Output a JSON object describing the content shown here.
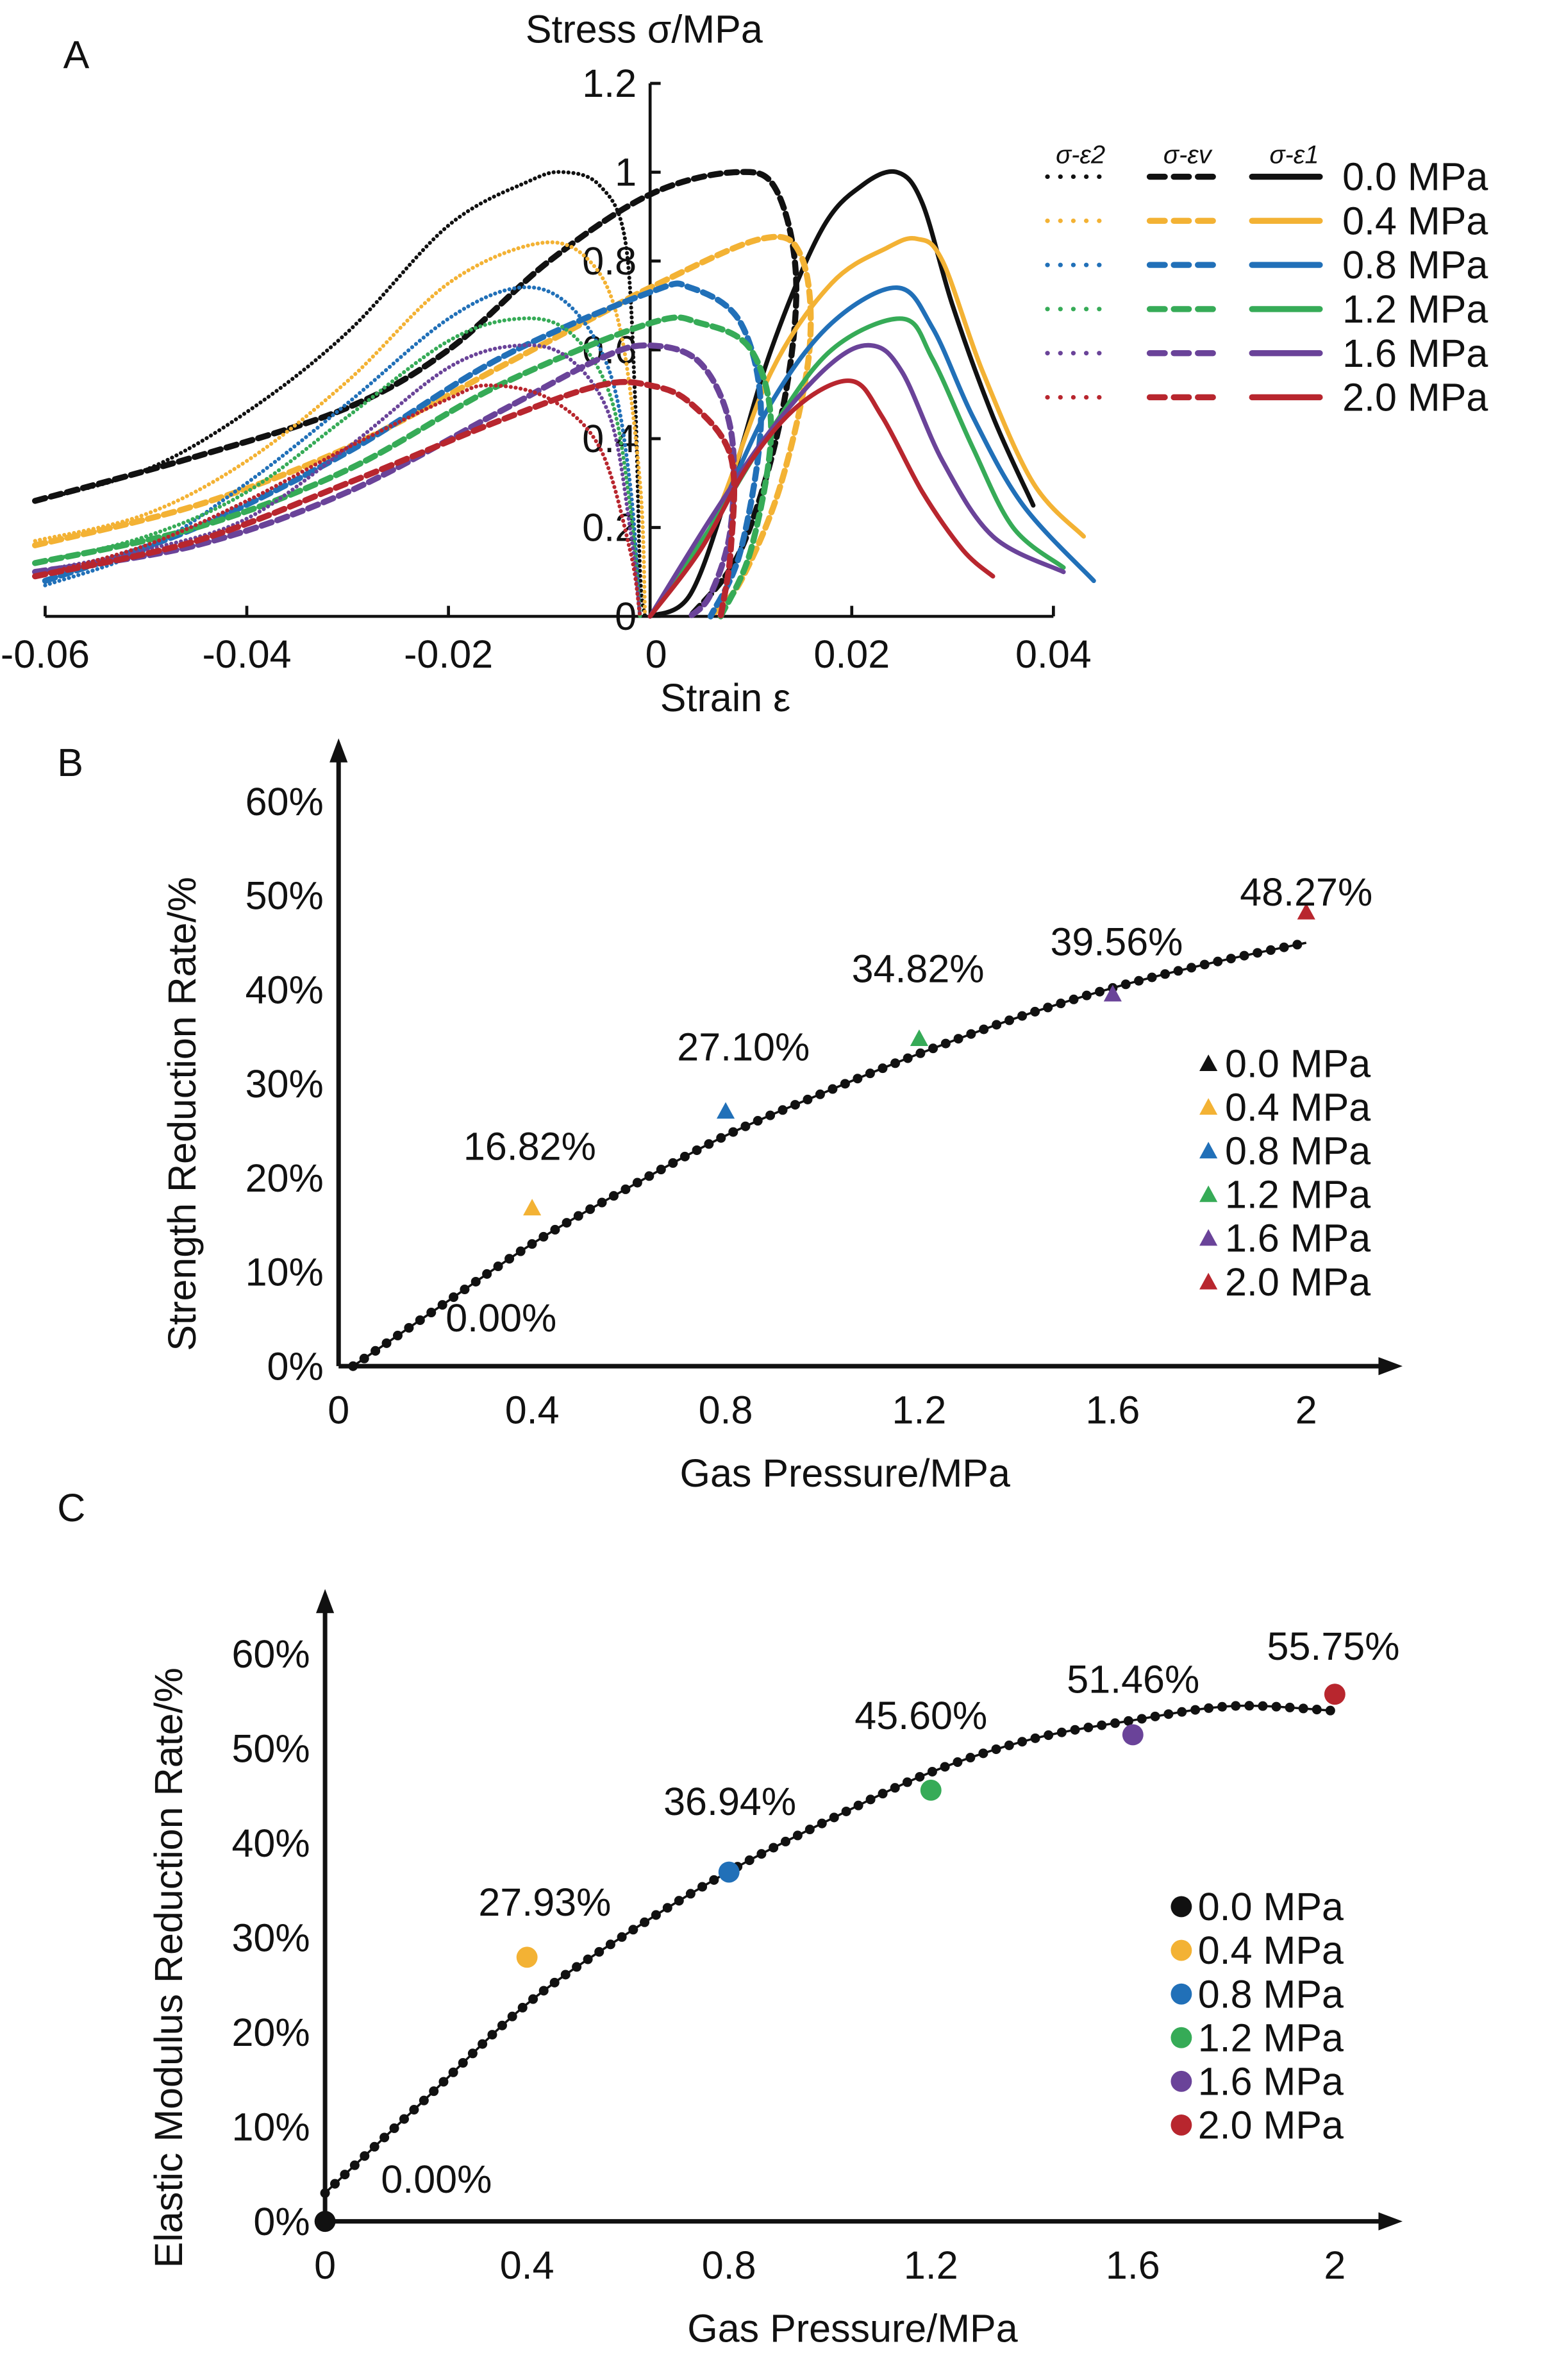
{
  "colors": {
    "0.0": "#111111",
    "0.4": "#f3b234",
    "0.8": "#2170b8",
    "1.2": "#36ab57",
    "1.6": "#6a4399",
    "2.0": "#b8262e"
  },
  "chart_data": [
    {
      "panel_label": "A",
      "type": "line",
      "title": "",
      "ylabel": "Stress σ/MPa",
      "xlabel": "Strain ε",
      "xlim": [
        -0.06,
        0.04
      ],
      "ylim": [
        0,
        1.2
      ],
      "xticks": [
        "-0.06",
        "-0.04",
        "-0.02",
        "0",
        "0.02",
        "0.04"
      ],
      "xtick_values": [
        -0.06,
        -0.04,
        -0.02,
        0,
        0.02,
        0.04
      ],
      "yticks": [
        "0",
        "0.2",
        "0.4",
        "0.6",
        "0.8",
        "1",
        "1.2"
      ],
      "ytick_values": [
        0,
        0.2,
        0.4,
        0.6,
        0.8,
        1.0,
        1.2
      ],
      "legend": {
        "placement": "right",
        "curve_types": [
          "σ-ε2",
          "σ-εv",
          "σ-ε1"
        ],
        "entries": [
          "0.0 MPa",
          "0.4 MPa",
          "0.8 MPa",
          "1.2 MPa",
          "1.6 MPa",
          "2.0 MPa"
        ]
      },
      "series": [
        {
          "name": "0.0 MPa",
          "key": "0.0",
          "e1": [
            [
              0,
              0
            ],
            [
              0.004,
              0.05
            ],
            [
              0.008,
              0.3
            ],
            [
              0.012,
              0.6
            ],
            [
              0.017,
              0.87
            ],
            [
              0.021,
              0.97
            ],
            [
              0.0245,
              1.0
            ],
            [
              0.027,
              0.93
            ],
            [
              0.03,
              0.7
            ],
            [
              0.034,
              0.45
            ],
            [
              0.038,
              0.25
            ]
          ],
          "e2": [
            [
              -0.061,
              0.26
            ],
            [
              -0.05,
              0.33
            ],
            [
              -0.04,
              0.46
            ],
            [
              -0.03,
              0.64
            ],
            [
              -0.02,
              0.88
            ],
            [
              -0.012,
              0.98
            ],
            [
              -0.0085,
              1.0
            ],
            [
              -0.005,
              0.97
            ],
            [
              -0.0025,
              0.85
            ],
            [
              -0.0015,
              0.5
            ],
            [
              -0.001,
              0.1
            ],
            [
              -0.0005,
              0
            ]
          ],
          "ev": [
            [
              -0.061,
              0.26
            ],
            [
              -0.045,
              0.36
            ],
            [
              -0.03,
              0.47
            ],
            [
              -0.02,
              0.6
            ],
            [
              -0.01,
              0.8
            ],
            [
              0,
              0.95
            ],
            [
              0.0085,
              1.0
            ],
            [
              0.0125,
              0.96
            ],
            [
              0.0145,
              0.75
            ],
            [
              0.013,
              0.45
            ],
            [
              0.009,
              0.15
            ],
            [
              0.004,
              0
            ]
          ]
        },
        {
          "name": "0.4 MPa",
          "key": "0.4",
          "e1": [
            [
              0,
              0
            ],
            [
              0.006,
              0.2
            ],
            [
              0.012,
              0.55
            ],
            [
              0.018,
              0.75
            ],
            [
              0.0235,
              0.83
            ],
            [
              0.0265,
              0.85
            ],
            [
              0.029,
              0.8
            ],
            [
              0.033,
              0.55
            ],
            [
              0.038,
              0.3
            ],
            [
              0.043,
              0.18
            ]
          ],
          "e2": [
            [
              -0.061,
              0.17
            ],
            [
              -0.05,
              0.23
            ],
            [
              -0.04,
              0.35
            ],
            [
              -0.03,
              0.53
            ],
            [
              -0.02,
              0.75
            ],
            [
              -0.011,
              0.84
            ],
            [
              -0.006,
              0.8
            ],
            [
              -0.003,
              0.65
            ],
            [
              -0.001,
              0.3
            ],
            [
              -0.0005,
              0
            ]
          ],
          "ev": [
            [
              -0.061,
              0.16
            ],
            [
              -0.045,
              0.25
            ],
            [
              -0.03,
              0.38
            ],
            [
              -0.015,
              0.56
            ],
            [
              -0.005,
              0.68
            ],
            [
              0,
              0.74
            ],
            [
              0.011,
              0.85
            ],
            [
              0.015,
              0.81
            ],
            [
              0.0158,
              0.6
            ],
            [
              0.013,
              0.3
            ],
            [
              0.009,
              0.08
            ],
            [
              0.006,
              0
            ]
          ]
        },
        {
          "name": "0.8 MPa",
          "key": "0.8",
          "e1": [
            [
              0,
              0
            ],
            [
              0.006,
              0.2
            ],
            [
              0.012,
              0.48
            ],
            [
              0.018,
              0.66
            ],
            [
              0.0245,
              0.74
            ],
            [
              0.028,
              0.65
            ],
            [
              0.032,
              0.45
            ],
            [
              0.037,
              0.25
            ],
            [
              0.044,
              0.08
            ]
          ],
          "e2": [
            [
              -0.06,
              0.07
            ],
            [
              -0.05,
              0.15
            ],
            [
              -0.04,
              0.3
            ],
            [
              -0.03,
              0.48
            ],
            [
              -0.02,
              0.67
            ],
            [
              -0.013,
              0.74
            ],
            [
              -0.008,
              0.7
            ],
            [
              -0.004,
              0.55
            ],
            [
              -0.002,
              0.3
            ],
            [
              -0.001,
              0
            ]
          ],
          "ev": [
            [
              -0.06,
              0.08
            ],
            [
              -0.045,
              0.2
            ],
            [
              -0.03,
              0.37
            ],
            [
              -0.015,
              0.58
            ],
            [
              0,
              0.73
            ],
            [
              0.004,
              0.74
            ],
            [
              0.009,
              0.66
            ],
            [
              0.011,
              0.45
            ],
            [
              0.009,
              0.15
            ],
            [
              0.006,
              0
            ]
          ]
        },
        {
          "name": "1.2 MPa",
          "key": "1.2",
          "e1": [
            [
              0,
              0
            ],
            [
              0.006,
              0.2
            ],
            [
              0.012,
              0.42
            ],
            [
              0.018,
              0.6
            ],
            [
              0.025,
              0.67
            ],
            [
              0.028,
              0.58
            ],
            [
              0.032,
              0.38
            ],
            [
              0.036,
              0.2
            ],
            [
              0.041,
              0.11
            ]
          ],
          "e2": [
            [
              -0.061,
              0.12
            ],
            [
              -0.05,
              0.18
            ],
            [
              -0.04,
              0.28
            ],
            [
              -0.03,
              0.45
            ],
            [
              -0.02,
              0.62
            ],
            [
              -0.013,
              0.67
            ],
            [
              -0.008,
              0.64
            ],
            [
              -0.004,
              0.5
            ],
            [
              -0.002,
              0.25
            ],
            [
              -0.001,
              0
            ]
          ],
          "ev": [
            [
              -0.061,
              0.12
            ],
            [
              -0.045,
              0.2
            ],
            [
              -0.03,
              0.33
            ],
            [
              -0.015,
              0.52
            ],
            [
              0,
              0.66
            ],
            [
              0.005,
              0.66
            ],
            [
              0.01,
              0.6
            ],
            [
              0.012,
              0.42
            ],
            [
              0.01,
              0.15
            ],
            [
              0.007,
              0
            ]
          ]
        },
        {
          "name": "1.6 MPa",
          "key": "1.6",
          "e1": [
            [
              0,
              0
            ],
            [
              0.006,
              0.22
            ],
            [
              0.012,
              0.42
            ],
            [
              0.018,
              0.57
            ],
            [
              0.022,
              0.61
            ],
            [
              0.025,
              0.55
            ],
            [
              0.029,
              0.35
            ],
            [
              0.034,
              0.18
            ],
            [
              0.041,
              0.1
            ]
          ],
          "e2": [
            [
              -0.061,
              0.1
            ],
            [
              -0.05,
              0.15
            ],
            [
              -0.04,
              0.22
            ],
            [
              -0.03,
              0.38
            ],
            [
              -0.02,
              0.56
            ],
            [
              -0.013,
              0.61
            ],
            [
              -0.008,
              0.58
            ],
            [
              -0.004,
              0.45
            ],
            [
              -0.002,
              0.2
            ],
            [
              -0.001,
              0
            ]
          ],
          "ev": [
            [
              -0.061,
              0.1
            ],
            [
              -0.045,
              0.16
            ],
            [
              -0.03,
              0.28
            ],
            [
              -0.015,
              0.46
            ],
            [
              -0.005,
              0.58
            ],
            [
              0,
              0.61
            ],
            [
              0.005,
              0.57
            ],
            [
              0.008,
              0.42
            ],
            [
              0.008,
              0.2
            ],
            [
              0.006,
              0.05
            ],
            [
              0.004,
              0
            ]
          ]
        },
        {
          "name": "2.0 MPa",
          "key": "2.0",
          "e1": [
            [
              0,
              0
            ],
            [
              0.005,
              0.15
            ],
            [
              0.01,
              0.35
            ],
            [
              0.015,
              0.48
            ],
            [
              0.02,
              0.53
            ],
            [
              0.023,
              0.45
            ],
            [
              0.027,
              0.28
            ],
            [
              0.031,
              0.15
            ],
            [
              0.034,
              0.09
            ]
          ],
          "e2": [
            [
              -0.061,
              0.09
            ],
            [
              -0.05,
              0.16
            ],
            [
              -0.04,
              0.26
            ],
            [
              -0.03,
              0.38
            ],
            [
              -0.02,
              0.49
            ],
            [
              -0.016,
              0.52
            ],
            [
              -0.01,
              0.49
            ],
            [
              -0.005,
              0.38
            ],
            [
              -0.002,
              0.15
            ],
            [
              -0.001,
              0
            ]
          ],
          "ev": [
            [
              -0.061,
              0.09
            ],
            [
              -0.045,
              0.17
            ],
            [
              -0.03,
              0.3
            ],
            [
              -0.015,
              0.44
            ],
            [
              -0.005,
              0.52
            ],
            [
              0,
              0.52
            ],
            [
              0.004,
              0.48
            ],
            [
              0.008,
              0.36
            ],
            [
              0.008,
              0.15
            ],
            [
              0.007,
              0
            ]
          ]
        }
      ]
    },
    {
      "panel_label": "B",
      "type": "scatter",
      "xlabel": "Gas Pressure/MPa",
      "ylabel": "Strength Reduction Rate/%",
      "xlim": [
        0,
        2
      ],
      "ylim": [
        0,
        60
      ],
      "xticks": [
        "0",
        "0.4",
        "0.8",
        "1.2",
        "1.6",
        "2"
      ],
      "xtick_values": [
        0,
        0.4,
        0.8,
        1.2,
        1.6,
        2
      ],
      "yticks": [
        "0%",
        "10%",
        "20%",
        "30%",
        "40%",
        "50%",
        "60%"
      ],
      "ytick_values": [
        0,
        10,
        20,
        30,
        40,
        50,
        60
      ],
      "marker": "triangle",
      "legend": {
        "placement": "right",
        "entries": [
          "0.0 MPa",
          "0.4 MPa",
          "0.8 MPa",
          "1.2 MPa",
          "1.6 MPa",
          "2.0 MPa"
        ]
      },
      "points": [
        {
          "key": "0.0",
          "x": 0,
          "y": 0,
          "label": "0.00%"
        },
        {
          "key": "0.4",
          "x": 0.4,
          "y": 16.82,
          "label": "16.82%"
        },
        {
          "key": "0.8",
          "x": 0.8,
          "y": 27.1,
          "label": "27.10%"
        },
        {
          "key": "1.2",
          "x": 1.2,
          "y": 34.82,
          "label": "34.82%"
        },
        {
          "key": "1.6",
          "x": 1.6,
          "y": 39.56,
          "label": "39.56%"
        },
        {
          "key": "2.0",
          "x": 2.0,
          "y": 48.27,
          "label": "48.27%"
        }
      ],
      "fit_curve": [
        [
          0.03,
          0
        ],
        [
          0.2,
          6
        ],
        [
          0.4,
          13
        ],
        [
          0.6,
          19
        ],
        [
          0.8,
          24.5
        ],
        [
          1.0,
          29
        ],
        [
          1.2,
          33.2
        ],
        [
          1.4,
          37
        ],
        [
          1.6,
          40.2
        ],
        [
          1.8,
          42.8
        ],
        [
          2.0,
          45
        ]
      ]
    },
    {
      "panel_label": "C",
      "type": "scatter",
      "xlabel": "Gas Pressure/MPa",
      "ylabel": "Elastic Modulus Reduction Rate/%",
      "xlim": [
        0,
        2
      ],
      "ylim": [
        0,
        60
      ],
      "xticks": [
        "0",
        "0.4",
        "0.8",
        "1.2",
        "1.6",
        "2"
      ],
      "xtick_values": [
        0,
        0.4,
        0.8,
        1.2,
        1.6,
        2
      ],
      "yticks": [
        "0%",
        "10%",
        "20%",
        "30%",
        "40%",
        "50%",
        "60%"
      ],
      "ytick_values": [
        0,
        10,
        20,
        30,
        40,
        50,
        60
      ],
      "marker": "circle",
      "legend": {
        "placement": "right",
        "entries": [
          "0.0 MPa",
          "0.4 MPa",
          "0.8 MPa",
          "1.2 MPa",
          "1.6 MPa",
          "2.0 MPa"
        ]
      },
      "points": [
        {
          "key": "0.0",
          "x": 0,
          "y": 0,
          "label": "0.00%"
        },
        {
          "key": "0.4",
          "x": 0.4,
          "y": 27.93,
          "label": "27.93%"
        },
        {
          "key": "0.8",
          "x": 0.8,
          "y": 36.94,
          "label": "36.94%"
        },
        {
          "key": "1.2",
          "x": 1.2,
          "y": 45.6,
          "label": "45.60%"
        },
        {
          "key": "1.6",
          "x": 1.6,
          "y": 51.46,
          "label": "51.46%"
        },
        {
          "key": "2.0",
          "x": 2.0,
          "y": 55.75,
          "label": "55.75%"
        }
      ],
      "fit_curve": [
        [
          0,
          3
        ],
        [
          0.2,
          13
        ],
        [
          0.4,
          23
        ],
        [
          0.6,
          30.5
        ],
        [
          0.8,
          37
        ],
        [
          1.0,
          42.5
        ],
        [
          1.2,
          47.5
        ],
        [
          1.4,
          51
        ],
        [
          1.6,
          53
        ],
        [
          1.8,
          54.5
        ],
        [
          2.0,
          54
        ]
      ]
    }
  ]
}
